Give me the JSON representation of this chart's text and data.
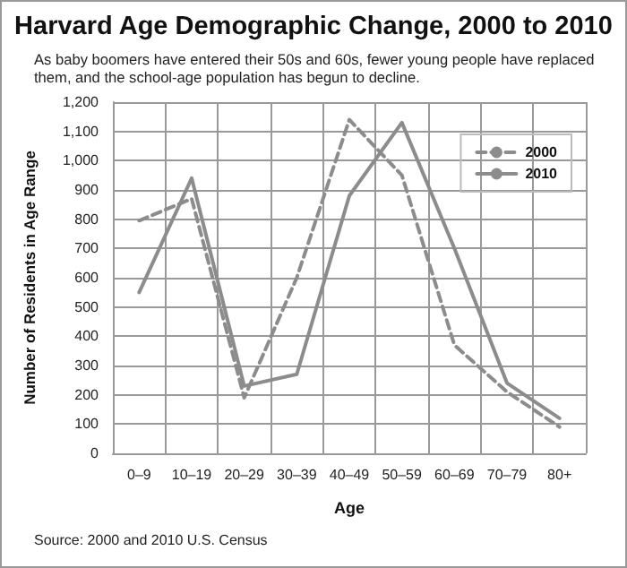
{
  "chart_data": {
    "type": "line",
    "title": "Harvard Age Demographic Change, 2000 to 2010",
    "subtitle": "As baby boomers have entered their 50s and 60s, fewer young people have replaced them, and the school-age population has begun to decline.",
    "xlabel": "Age",
    "ylabel": "Number of Residents in Age Range",
    "categories": [
      "0–9",
      "10–19",
      "20–29",
      "30–39",
      "40–49",
      "50–59",
      "60–69",
      "70–79",
      "80+"
    ],
    "series": [
      {
        "name": "2000",
        "color": "#8c8c8c",
        "line_style": "dashed",
        "values": [
          795,
          870,
          190,
          600,
          1140,
          950,
          370,
          210,
          90
        ]
      },
      {
        "name": "2010",
        "color": "#8c8c8c",
        "line_style": "solid",
        "values": [
          550,
          940,
          230,
          270,
          880,
          1130,
          700,
          240,
          120
        ]
      }
    ],
    "ylim": [
      0,
      1200
    ],
    "yticks": [
      0,
      100,
      200,
      300,
      400,
      500,
      600,
      700,
      800,
      900,
      {
        "value": 1000,
        "label": "1,000"
      },
      {
        "value": 1100,
        "label": "1,100"
      },
      {
        "value": 1200,
        "label": "1,200"
      }
    ],
    "grid": true,
    "legend": "top right",
    "marker": "none",
    "annotations": [
      "Source: 2000 and 2010 U.S. Census"
    ]
  }
}
